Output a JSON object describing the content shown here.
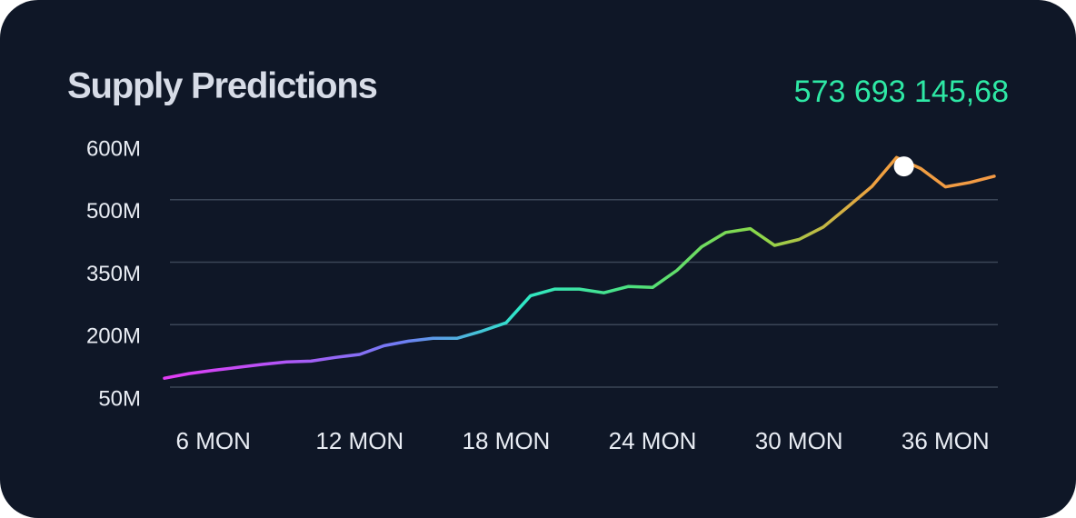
{
  "chart_data": {
    "type": "line",
    "title": "Supply Predictions",
    "highlight": {
      "x": 34.3,
      "value": 573.69314568,
      "label": "573 693 145,68",
      "color": "#2ee8a5"
    },
    "x": [
      4,
      5,
      6,
      7,
      8,
      9,
      10,
      11,
      12,
      13,
      14,
      15,
      16,
      17,
      18,
      19,
      20,
      21,
      22,
      23,
      24,
      25,
      26,
      27,
      28,
      29,
      30,
      31,
      32,
      33,
      34,
      35,
      36,
      37,
      38
    ],
    "series": [
      {
        "values": [
          102,
          113,
          121,
          128,
          135,
          141,
          143,
          152,
          159,
          180,
          191,
          198,
          198,
          215,
          235,
          300,
          316,
          316,
          307,
          322,
          320,
          361,
          417,
          452,
          461,
          421,
          435,
          465,
          509,
          542,
          588,
          570,
          541,
          548,
          558
        ],
        "color": [
          "#e33cf5",
          "#b256f7",
          "#6f7df4",
          "#2ee8c8",
          "#4fe07a",
          "#8ad84a",
          "#f0a040",
          "#f39a45"
        ]
      }
    ],
    "xlim": [
      4,
      38
    ],
    "xticks": [
      {
        "value": 6,
        "label": "6 MON"
      },
      {
        "value": 12,
        "label": "12 MON"
      },
      {
        "value": 18,
        "label": "18 MON"
      },
      {
        "value": 24,
        "label": "24 MON"
      },
      {
        "value": 30,
        "label": "30 MON"
      },
      {
        "value": 36,
        "label": "36 MON"
      }
    ],
    "ylim": [
      50,
      600
    ],
    "yticks": [
      {
        "value": 600,
        "label": "600M"
      },
      {
        "value": 500,
        "label": "500M"
      },
      {
        "value": 350,
        "label": "350M"
      },
      {
        "value": 200,
        "label": "200M"
      },
      {
        "value": 50,
        "label": "50M"
      }
    ],
    "grid": true
  }
}
